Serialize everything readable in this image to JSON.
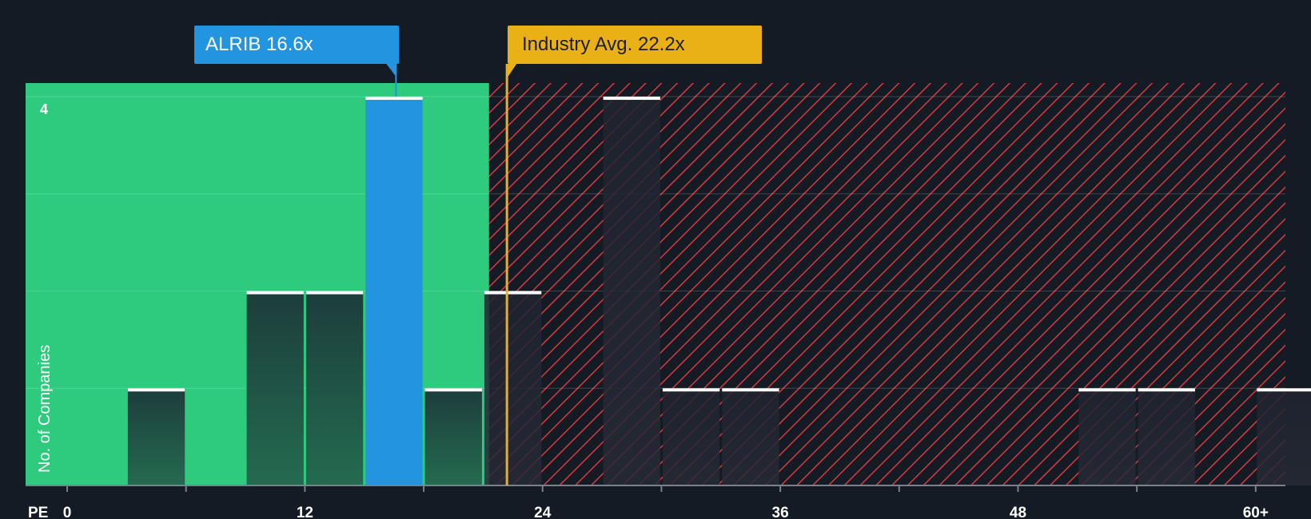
{
  "chart_data": {
    "type": "histogram",
    "x_axis_label": "PE",
    "y_axis_label": "No. of Companies",
    "x_ticks": [
      "0",
      "12",
      "24",
      "36",
      "48",
      "60+"
    ],
    "x_tick_values": [
      0,
      12,
      24,
      36,
      48,
      60
    ],
    "x_range": [
      -2.1,
      61.5
    ],
    "y_range": [
      0,
      4.14
    ],
    "y_tick_labels": [
      "4"
    ],
    "y_tick_values": [
      4
    ],
    "gridlines_y": [
      1,
      2,
      3,
      4
    ],
    "bin_width": 3,
    "bins": [
      {
        "start": 3,
        "end": 6,
        "count": 1,
        "highlight": false
      },
      {
        "start": 9,
        "end": 12,
        "count": 2,
        "highlight": false
      },
      {
        "start": 12,
        "end": 15,
        "count": 2,
        "highlight": false
      },
      {
        "start": 15,
        "end": 18,
        "count": 4,
        "highlight": true
      },
      {
        "start": 18,
        "end": 21,
        "count": 1,
        "highlight": false
      },
      {
        "start": 21,
        "end": 24,
        "count": 2,
        "highlight": false
      },
      {
        "start": 27,
        "end": 30,
        "count": 4,
        "highlight": false
      },
      {
        "start": 30,
        "end": 33,
        "count": 1,
        "highlight": false
      },
      {
        "start": 33,
        "end": 36,
        "count": 1,
        "highlight": false
      },
      {
        "start": 51,
        "end": 54,
        "count": 1,
        "highlight": false
      },
      {
        "start": 54,
        "end": 57,
        "count": 1,
        "highlight": false
      },
      {
        "start": 60,
        "end": 63,
        "count": 1,
        "highlight": false
      }
    ],
    "fair_value_boundary": 21.3,
    "company": {
      "ticker": "ALRIB",
      "pe": 16.6,
      "label": "ALRIB 16.6x"
    },
    "industry_average": {
      "pe": 22.2,
      "label": "Industry Avg. 22.2x"
    },
    "colors": {
      "background": "#151b24",
      "undervalued_zone": "#2ecb7e",
      "overvalued_hatch": "#d83a3e",
      "bar_dark": "#1e4a41",
      "company_bar": "#2394e0",
      "industry_line": "#eab117",
      "axis": "#7a828c",
      "text": "#ffffff"
    }
  }
}
